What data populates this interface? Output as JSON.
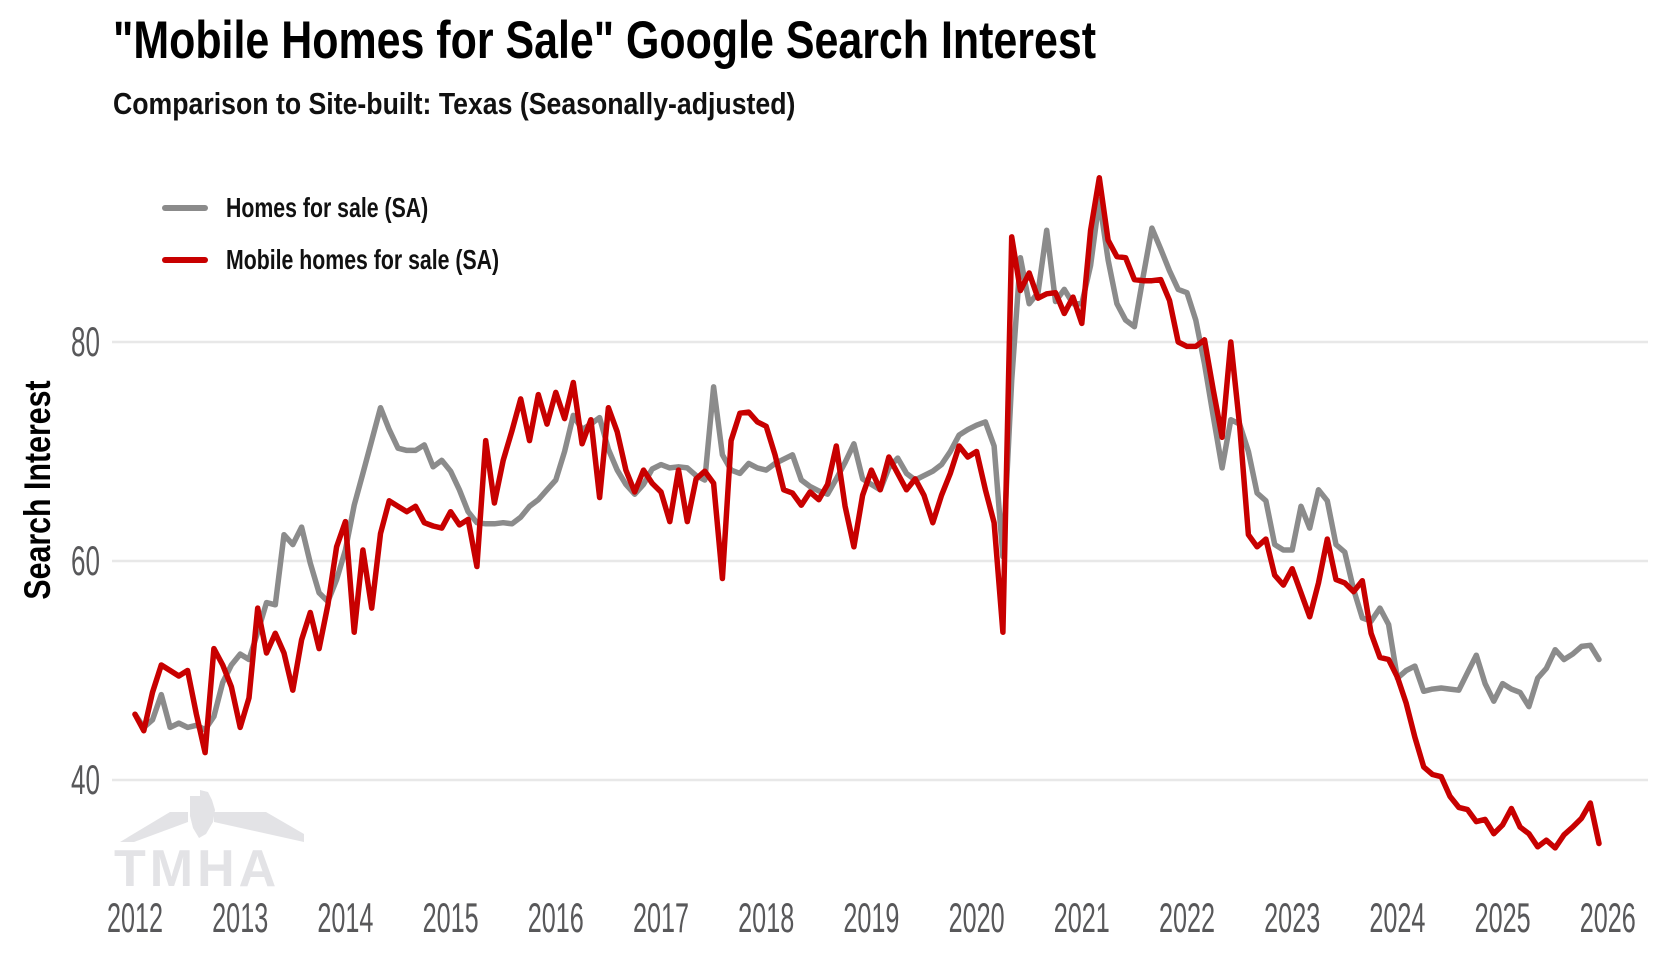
{
  "title": "\"Mobile Homes for Sale\" Google Search Interest",
  "subtitle": "Comparison to Site-built: Texas (Seasonally-adjusted)",
  "watermark": {
    "text": "TMHA"
  },
  "colors": {
    "homes_line": "#8B8B8B",
    "mobile_line": "#C80000",
    "gridline": "#E8E8E8",
    "tick_text": "#58585A",
    "watermark": "#E3E3E6"
  },
  "chart_data": {
    "type": "line",
    "title": "\"Mobile Homes for Sale\" Google Search Interest",
    "subtitle": "Comparison to Site-built: Texas (Seasonally-adjusted)",
    "xlabel": "",
    "ylabel": "Search Interest",
    "x_interval": "monthly",
    "x_start": "2012-01",
    "x_end": "2025-12",
    "x_tick_years": [
      "2012",
      "2013",
      "2014",
      "2015",
      "2016",
      "2017",
      "2018",
      "2019",
      "2020",
      "2021",
      "2022",
      "2023",
      "2024",
      "2025",
      "2026"
    ],
    "yticks": [
      40,
      60,
      80
    ],
    "ylim": [
      31,
      97
    ],
    "grid": "horizontal",
    "legend_position": "top-left",
    "series": [
      {
        "name": "Homes for sale (SA)",
        "color": "#8B8B8B",
        "values": [
          46,
          44.8,
          45.5,
          47.8,
          44.8,
          45.2,
          44.8,
          45.0,
          44.6,
          45.8,
          48.9,
          50.5,
          51.5,
          51.0,
          53.5,
          56.2,
          56.0,
          62.4,
          61.5,
          63.1,
          59.8,
          57.1,
          56.3,
          58.3,
          61.0,
          65.1,
          68.0,
          71.0,
          74.0,
          72.0,
          70.3,
          70.1,
          70.1,
          70.6,
          68.6,
          69.2,
          68.2,
          66.5,
          64.5,
          63.5,
          63.4,
          63.4,
          63.5,
          63.4,
          64.0,
          65.0,
          65.6,
          66.5,
          67.4,
          70.0,
          73.3,
          72.0,
          72.5,
          73.1,
          70.2,
          68.3,
          67.0,
          66.1,
          67.0,
          68.4,
          68.8,
          68.5,
          68.6,
          68.5,
          67.8,
          67.4,
          75.9,
          69.7,
          68.3,
          68.0,
          68.9,
          68.5,
          68.3,
          68.9,
          69.3,
          69.7,
          67.4,
          66.8,
          66.4,
          66.1,
          67.5,
          69.0,
          70.7,
          67.5,
          67.0,
          66.5,
          68.5,
          69.4,
          68.0,
          67.4,
          67.8,
          68.2,
          68.8,
          70.0,
          71.5,
          72.0,
          72.4,
          72.7,
          70.5,
          60.4,
          76.5,
          87.7,
          83.5,
          84.5,
          90.2,
          83.7,
          84.8,
          83.5,
          83.5,
          87.0,
          93.0,
          87.5,
          83.5,
          82.0,
          81.4,
          86.0,
          90.4,
          88.5,
          86.5,
          84.8,
          84.5,
          82.0,
          78.0,
          73.2,
          68.5,
          72.9,
          72.5,
          70.0,
          66.2,
          65.5,
          61.5,
          61.0,
          61.0,
          65.0,
          63.0,
          66.5,
          65.5,
          61.5,
          60.8,
          57.4,
          54.8,
          54.5,
          55.7,
          54.2,
          49.3,
          50.0,
          50.4,
          48.1,
          48.3,
          48.4,
          48.3,
          48.2,
          49.8,
          51.4,
          48.8,
          47.2,
          48.8,
          48.3,
          48.0,
          46.7,
          49.3,
          50.2,
          51.9,
          51.0,
          51.5,
          52.2,
          52.3,
          51.0
        ]
      },
      {
        "name": "Mobile homes for sale (SA)",
        "color": "#C80000",
        "values": [
          46.0,
          44.5,
          48.0,
          50.5,
          50.0,
          49.5,
          50.0,
          46.0,
          42.5,
          52.0,
          50.5,
          48.5,
          44.8,
          47.5,
          55.7,
          51.6,
          53.4,
          51.6,
          48.2,
          52.8,
          55.3,
          52.0,
          56.0,
          61.3,
          63.6,
          53.5,
          61.0,
          55.7,
          62.5,
          65.5,
          65.0,
          64.5,
          65.0,
          63.5,
          63.2,
          63.0,
          64.5,
          63.3,
          63.8,
          59.5,
          71.0,
          65.3,
          69.2,
          71.9,
          74.8,
          71.0,
          75.2,
          72.5,
          75.4,
          73.0,
          76.3,
          70.7,
          72.9,
          65.8,
          74.0,
          71.8,
          68.3,
          66.3,
          68.3,
          67.1,
          66.3,
          63.6,
          68.3,
          63.6,
          67.5,
          68.2,
          67.1,
          58.4,
          71.0,
          73.5,
          73.6,
          72.7,
          72.3,
          69.7,
          66.5,
          66.2,
          65.1,
          66.3,
          65.6,
          67.0,
          70.5,
          65.0,
          61.3,
          66.0,
          68.3,
          66.5,
          69.5,
          68.0,
          66.5,
          67.5,
          66.0,
          63.5,
          66.0,
          68.0,
          70.5,
          69.5,
          70.0,
          66.5,
          63.5,
          53.5,
          89.6,
          84.7,
          86.3,
          84.0,
          84.4,
          84.5,
          82.6,
          84.1,
          81.7,
          90.2,
          95.0,
          89.3,
          87.8,
          87.7,
          85.7,
          85.6,
          85.6,
          85.7,
          83.8,
          80.0,
          79.6,
          79.6,
          80.2,
          75.6,
          71.3,
          80.0,
          72.4,
          62.4,
          61.3,
          62.0,
          58.7,
          57.8,
          59.3,
          57.1,
          54.9,
          58.0,
          62.0,
          58.3,
          58.0,
          57.2,
          58.2,
          53.4,
          51.2,
          51.0,
          49.4,
          47.0,
          43.9,
          41.2,
          40.5,
          40.3,
          38.5,
          37.5,
          37.3,
          36.2,
          36.4,
          35.1,
          35.9,
          37.4,
          35.7,
          35.1,
          33.9,
          34.5,
          33.8,
          35.0,
          35.7,
          36.5,
          37.9,
          34.2
        ]
      }
    ]
  }
}
